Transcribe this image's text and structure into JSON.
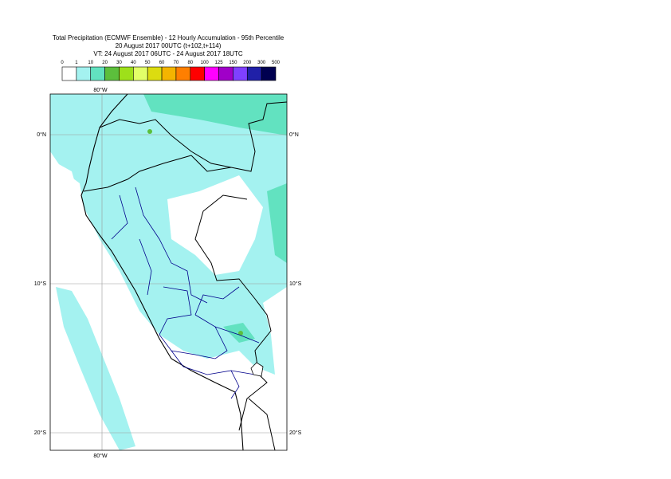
{
  "title_lines": [
    "Total Precipitation (ECMWF Ensemble) - 12 Hourly Accumulation - 95th Percentile",
    "20 August 2017 00UTC (t+102,t+114)",
    "VT: 24 August 2017 06UTC - 24 August 2017 18UTC"
  ],
  "legend": {
    "labels": [
      0,
      1,
      10,
      20,
      30,
      40,
      50,
      60,
      70,
      80,
      100,
      125,
      150,
      200,
      300,
      500
    ],
    "colors": [
      "#ffffff",
      "#a4f2f0",
      "#62e2c0",
      "#5cbf3c",
      "#9ee01a",
      "#e2ff68",
      "#dcdc10",
      "#f4b400",
      "#ff7f00",
      "#ff0000",
      "#ff00ff",
      "#a000c8",
      "#7f40ff",
      "#2020a8",
      "#000050"
    ]
  },
  "grid": {
    "lon": [
      "80°W"
    ],
    "lat": [
      "0°N",
      "10°S",
      "20°S"
    ]
  }
}
